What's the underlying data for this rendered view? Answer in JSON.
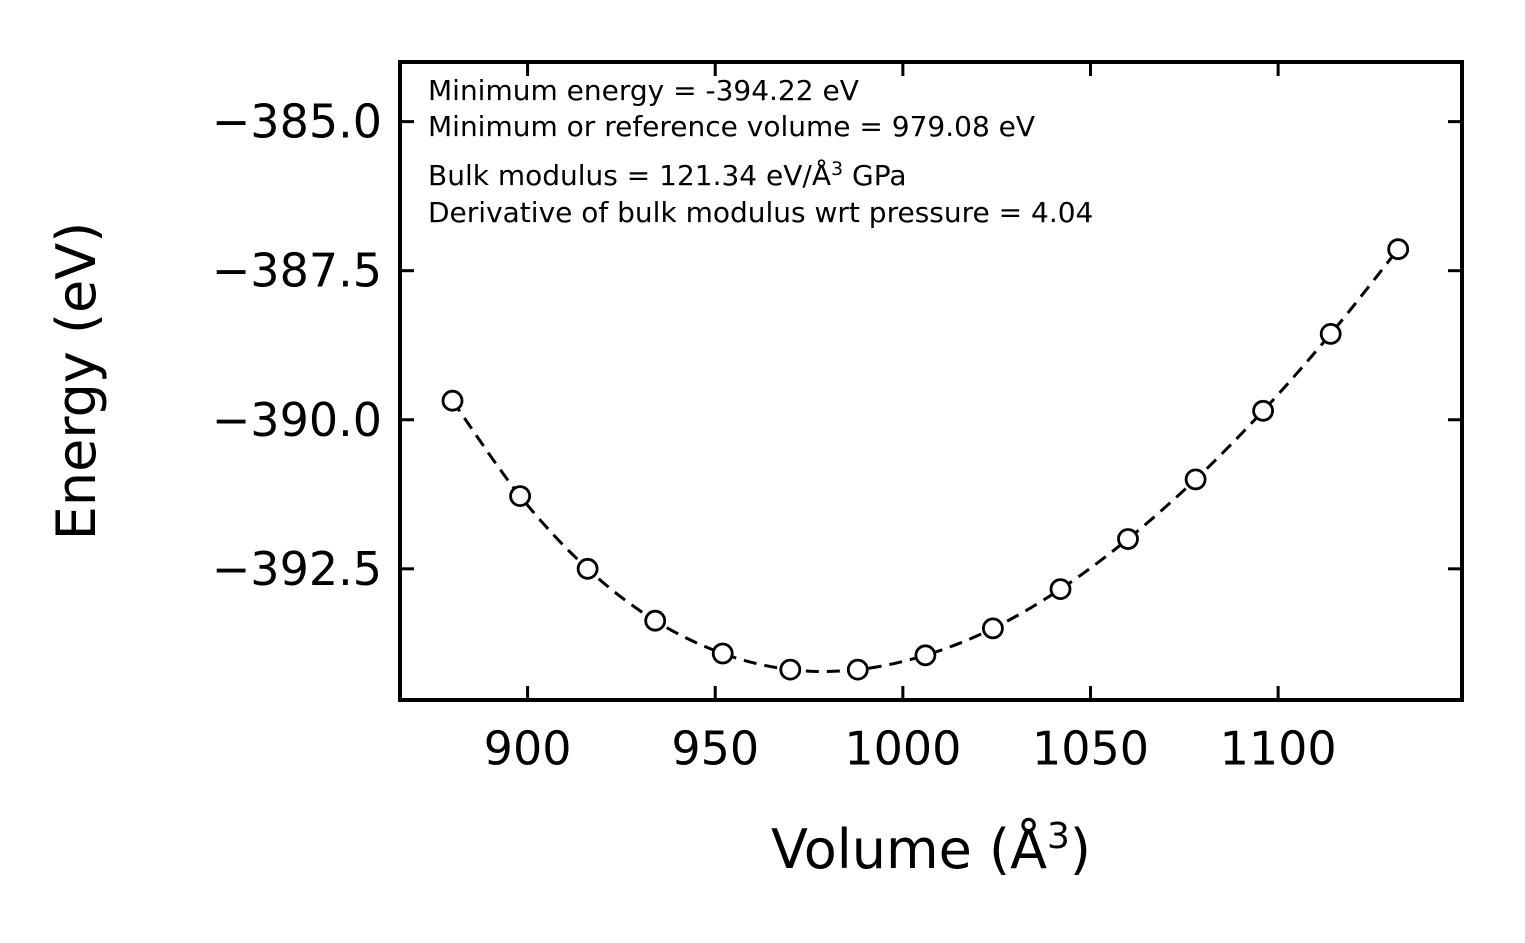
{
  "figure": {
    "background": "#ffffff",
    "frame_color": "#000000",
    "line_color": "#000000",
    "marker_style": "open-circle"
  },
  "annotations": {
    "line1": "Minimum energy = -394.22 eV",
    "line2": "Minimum or reference volume = 979.08 eV",
    "line3_pre": "Bulk modulus = 121.34 eV/Å",
    "line3_sup": "3",
    "line3_post": " GPa",
    "line4": "Derivative of bulk modulus wrt pressure = 4.04"
  },
  "chart_data": {
    "type": "scatter",
    "title": "",
    "xlabel": "Volume (Å³)",
    "xlabel_pre": "Volume (Å",
    "xlabel_sup": "3",
    "xlabel_post": ")",
    "ylabel": "Energy (eV)",
    "xlim": [
      866,
      1149
    ],
    "ylim": [
      -394.7,
      -384.0
    ],
    "grid": false,
    "legend_position": "none",
    "x_tick_values": [
      900,
      950,
      1000,
      1050,
      1100
    ],
    "x_tick_labels": [
      "900",
      "950",
      "1000",
      "1050",
      "1100"
    ],
    "y_tick_values": [
      -385.0,
      -387.5,
      -390.0,
      -392.5
    ],
    "y_tick_labels": [
      "−385.0",
      "−387.5",
      "−390.0",
      "−392.5"
    ],
    "series": [
      {
        "name": "energy-volume data points",
        "style": "open-circle-markers",
        "x": [
          880,
          898,
          916,
          934,
          952,
          970,
          988,
          1006,
          1024,
          1042,
          1060,
          1078,
          1096,
          1114,
          1132
        ],
        "y": [
          -389.68,
          -391.28,
          -392.5,
          -393.37,
          -393.92,
          -394.19,
          -394.19,
          -393.95,
          -393.5,
          -392.84,
          -392.0,
          -391.0,
          -389.85,
          -388.56,
          -387.14
        ]
      },
      {
        "name": "equation-of-state fit",
        "style": "dashed-line",
        "follows": "energy-volume data points"
      }
    ],
    "fit_parameters": {
      "minimum_energy_eV": -394.22,
      "minimum_or_reference_volume": 979.08,
      "bulk_modulus": 121.34,
      "bulk_modulus_pressure_derivative": 4.04
    }
  }
}
